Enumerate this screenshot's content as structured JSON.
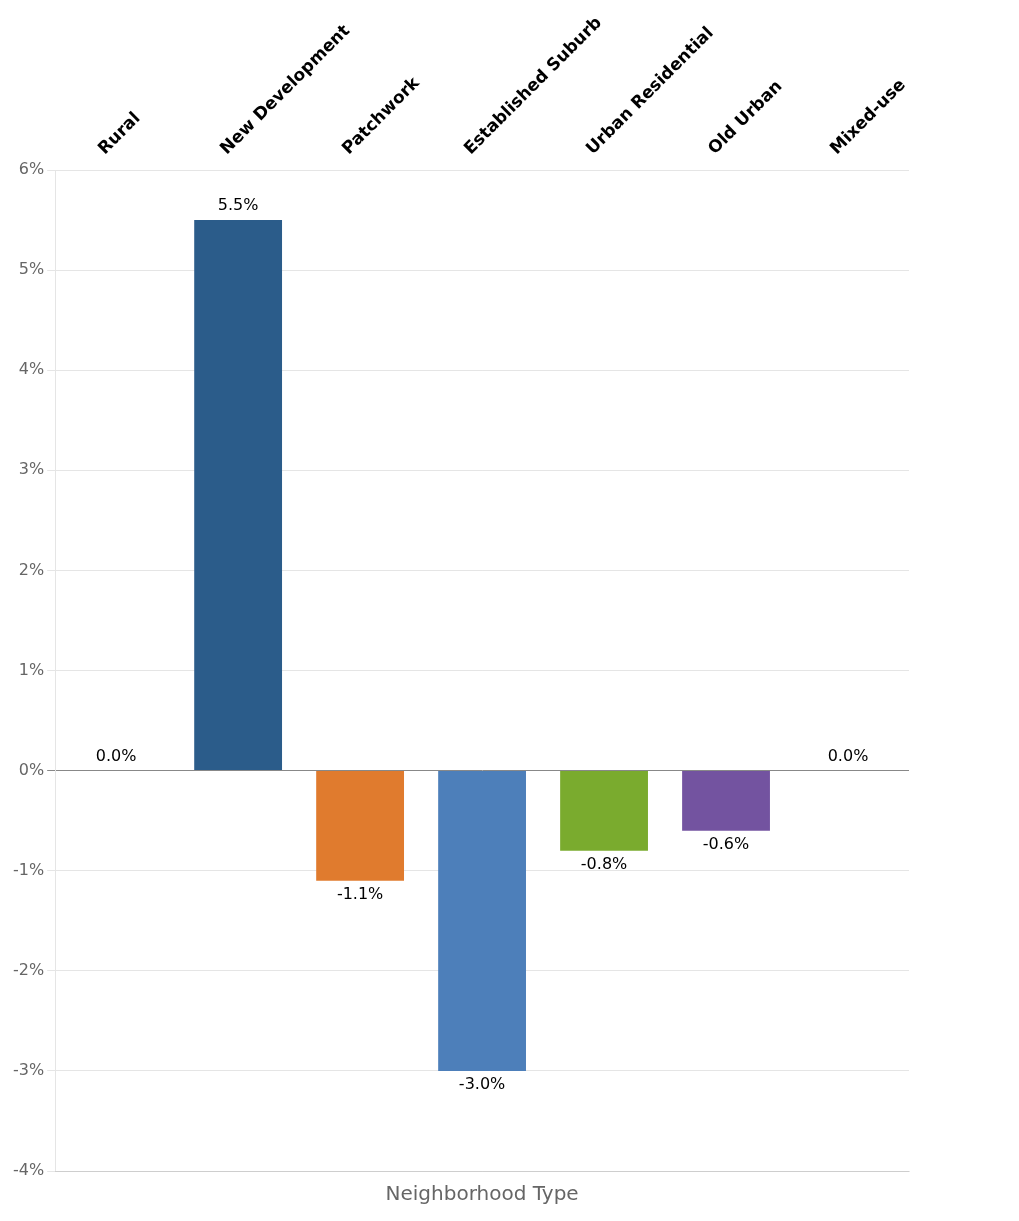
{
  "chart_data": {
    "type": "bar",
    "xlabel": "Neighborhood Type",
    "categories": [
      "Rural",
      "New Development",
      "Patchwork",
      "Established Suburb",
      "Urban Residential",
      "Old Urban",
      "Mixed-use"
    ],
    "values": [
      0.0,
      5.5,
      -1.1,
      -3.0,
      -0.8,
      -0.6,
      0.0
    ],
    "value_labels": [
      "0.0%",
      "5.5%",
      "-1.1%",
      "-3.0%",
      "-0.8%",
      "-0.6%",
      "0.0%"
    ],
    "colors": [
      "#2b5c8a",
      "#2b5c8a",
      "#e07b2e",
      "#4d7fba",
      "#7aab2e",
      "#7353a0",
      "#4d7fba"
    ],
    "ylim": [
      -4,
      6
    ],
    "yticks": [
      {
        "value": -4,
        "label": "-4%"
      },
      {
        "value": -3,
        "label": "-3%"
      },
      {
        "value": -2,
        "label": "-2%"
      },
      {
        "value": -1,
        "label": "-1%"
      },
      {
        "value": 0,
        "label": "0%"
      },
      {
        "value": 1,
        "label": "1%"
      },
      {
        "value": 2,
        "label": "2%"
      },
      {
        "value": 3,
        "label": "3%"
      },
      {
        "value": 4,
        "label": "4%"
      },
      {
        "value": 5,
        "label": "5%"
      },
      {
        "value": 6,
        "label": "6%"
      }
    ],
    "grid": true
  }
}
